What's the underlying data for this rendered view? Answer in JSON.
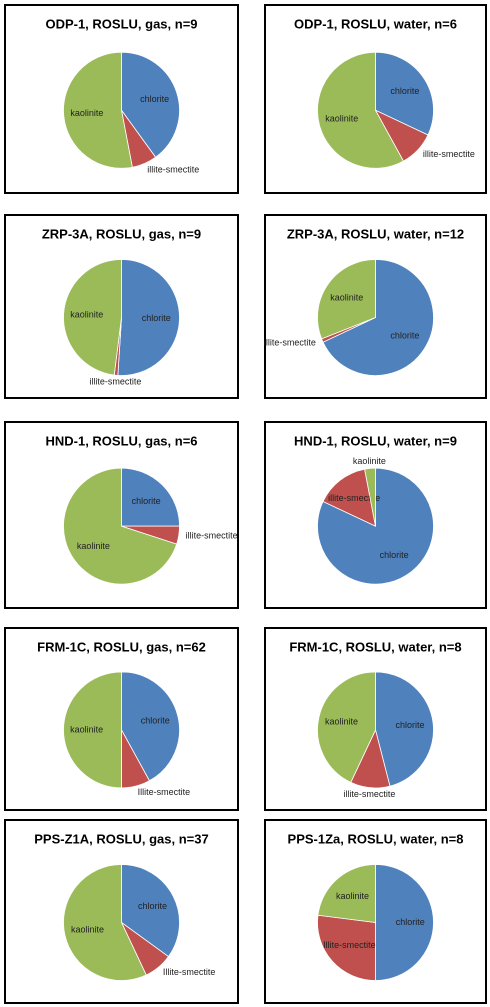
{
  "chart_data": [
    {
      "type": "pie",
      "title": "ODP-1, ROSLU, gas, n=9",
      "categories": [
        "chlorite",
        "illite-smectite",
        "kaolinite"
      ],
      "values": [
        40,
        7,
        53
      ],
      "colors": [
        "#4f81bd",
        "#c0504d",
        "#9bbb59"
      ]
    },
    {
      "type": "pie",
      "title": "ODP-1, ROSLU, water, n=6",
      "categories": [
        "chlorite",
        "illite-smectite",
        "kaolinite"
      ],
      "values": [
        32,
        10,
        58
      ],
      "colors": [
        "#4f81bd",
        "#c0504d",
        "#9bbb59"
      ]
    },
    {
      "type": "pie",
      "title": "ZRP-3A, ROSLU, gas, n=9",
      "categories": [
        "chlorite",
        "illite-smectite",
        "kaolinite"
      ],
      "values": [
        51,
        1,
        48
      ],
      "colors": [
        "#4f81bd",
        "#c0504d",
        "#9bbb59"
      ]
    },
    {
      "type": "pie",
      "title": "ZRP-3A, ROSLU, water, n=12",
      "categories": [
        "chlorite",
        "illite-smectite",
        "kaolinite"
      ],
      "values": [
        68,
        1,
        31
      ],
      "colors": [
        "#4f81bd",
        "#c0504d",
        "#9bbb59"
      ]
    },
    {
      "type": "pie",
      "title": "HND-1, ROSLU, gas, n=6",
      "categories": [
        "chlorite",
        "illite-smectite",
        "kaolinite"
      ],
      "values": [
        25,
        5,
        70
      ],
      "colors": [
        "#4f81bd",
        "#c0504d",
        "#9bbb59"
      ]
    },
    {
      "type": "pie",
      "title": "HND-1, ROSLU, water, n=9",
      "categories": [
        "chlorite",
        "illite-smectite",
        "kaolinite"
      ],
      "values": [
        82,
        15,
        3
      ],
      "colors": [
        "#4f81bd",
        "#c0504d",
        "#9bbb59"
      ]
    },
    {
      "type": "pie",
      "title": "FRM-1C, ROSLU, gas, n=62",
      "categories": [
        "chlorite",
        "Illite-smectite",
        "kaolinite"
      ],
      "values": [
        42,
        8,
        50
      ],
      "colors": [
        "#4f81bd",
        "#c0504d",
        "#9bbb59"
      ]
    },
    {
      "type": "pie",
      "title": "FRM-1C, ROSLU, water, n=8",
      "categories": [
        "chlorite",
        "illite-smectite",
        "kaolinite"
      ],
      "values": [
        46,
        11,
        43
      ],
      "colors": [
        "#4f81bd",
        "#c0504d",
        "#9bbb59"
      ]
    },
    {
      "type": "pie",
      "title": "PPS-Z1A, ROSLU, gas, n=37",
      "categories": [
        "chlorite",
        "Illite-smectite",
        "kaolinite"
      ],
      "values": [
        35,
        8,
        57
      ],
      "colors": [
        "#4f81bd",
        "#c0504d",
        "#9bbb59"
      ]
    },
    {
      "type": "pie",
      "title": "PPS-1Za, ROSLU, water, n=8",
      "categories": [
        "chlorite",
        "Illite-smectite",
        "kaolinite"
      ],
      "values": [
        50,
        27,
        23
      ],
      "colors": [
        "#4f81bd",
        "#c0504d",
        "#9bbb59"
      ]
    }
  ]
}
